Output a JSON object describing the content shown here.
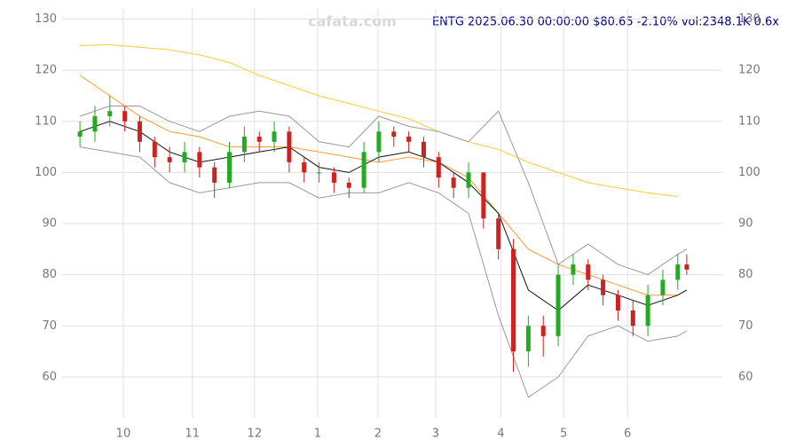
{
  "chart_data": {
    "type": "candlestick",
    "title": "ENTG 2025.06.30 00:00:00 $80.65 -2.10% vol:2348.1K 0.6x",
    "watermark": "cafata.com",
    "xlim": [
      -3,
      206
    ],
    "xticks": [
      {
        "value": 14.5,
        "label": "10"
      },
      {
        "value": 37.6,
        "label": "11"
      },
      {
        "value": 58.4,
        "label": "12"
      },
      {
        "value": 79.5,
        "label": "1"
      },
      {
        "value": 99.7,
        "label": "2"
      },
      {
        "value": 119,
        "label": "3"
      },
      {
        "value": 140.8,
        "label": "4"
      },
      {
        "value": 161.8,
        "label": "5"
      },
      {
        "value": 183.2,
        "label": "6"
      }
    ],
    "ylim": [
      52,
      132
    ],
    "yticks": [
      60,
      70,
      80,
      90,
      100,
      110,
      120,
      130
    ],
    "grid": true,
    "up_color": "#22aa22",
    "down_color": "#cc2222",
    "candles": {
      "x": [
        0,
        5,
        10,
        15,
        20,
        25,
        30,
        35,
        40,
        45,
        50,
        55,
        60,
        65,
        70,
        75,
        80,
        85,
        90,
        95,
        100,
        105,
        110,
        115,
        120,
        125,
        130,
        135,
        140,
        145,
        150,
        155,
        160,
        165,
        170,
        175,
        180,
        185,
        190,
        195,
        200,
        203
      ],
      "open": [
        107,
        108,
        111,
        112,
        110,
        106,
        103,
        102,
        104,
        101,
        98,
        104,
        107,
        106,
        108,
        102,
        100,
        100,
        98,
        97,
        104,
        108,
        107,
        106,
        103,
        99,
        97,
        100,
        91,
        85,
        65,
        70,
        68,
        80,
        82,
        79,
        76,
        73,
        70,
        76,
        79,
        82
      ],
      "close": [
        108,
        111,
        112,
        110,
        106,
        103,
        102,
        104,
        101,
        98,
        104,
        107,
        106,
        108,
        102,
        100,
        100,
        98,
        97,
        104,
        108,
        107,
        106,
        103,
        99,
        97,
        100,
        91,
        85,
        65,
        70,
        68,
        80,
        82,
        79,
        76,
        73,
        70,
        76,
        79,
        82,
        81
      ],
      "high": [
        110,
        113,
        115,
        113,
        111,
        107,
        105,
        106,
        105,
        102,
        106,
        109,
        108,
        110,
        109,
        103,
        102,
        101,
        99,
        106,
        110,
        109,
        108,
        107,
        104,
        100,
        102,
        100,
        92,
        87,
        72,
        72,
        82,
        84,
        83,
        80,
        77,
        75,
        78,
        81,
        84,
        84
      ],
      "low": [
        105,
        106,
        109,
        108,
        104,
        101,
        100,
        100,
        99,
        95,
        97,
        102,
        104,
        104,
        100,
        98,
        98,
        96,
        95,
        96,
        102,
        105,
        104,
        101,
        97,
        95,
        95,
        89,
        83,
        61,
        62,
        64,
        66,
        78,
        77,
        74,
        71,
        68,
        68,
        74,
        77,
        80
      ]
    },
    "series": [
      {
        "color": "#ffcc33",
        "x": [
          0,
          10,
          20,
          30,
          40,
          50,
          60,
          70,
          80,
          90,
          100,
          110,
          120,
          130,
          140,
          150,
          160,
          170,
          180,
          190,
          200
        ],
        "values": [
          124.8,
          125,
          124.5,
          124,
          123,
          121.5,
          119,
          117,
          115,
          113.5,
          112,
          110.5,
          108,
          106,
          104.5,
          102,
          100,
          98,
          97,
          96,
          95.3
        ]
      },
      {
        "color": "#ff9933",
        "x": [
          0,
          10,
          20,
          30,
          40,
          50,
          60,
          70,
          80,
          90,
          100,
          110,
          120,
          130,
          140,
          150,
          160,
          170,
          180,
          190,
          200
        ],
        "values": [
          119,
          115,
          111,
          108,
          107,
          105,
          105,
          105,
          104,
          103,
          102,
          103,
          102,
          99,
          92,
          85,
          82,
          80,
          78,
          76,
          76
        ]
      },
      {
        "color": "#111111",
        "x": [
          0,
          10,
          20,
          30,
          40,
          50,
          60,
          70,
          80,
          90,
          100,
          110,
          120,
          130,
          140,
          150,
          160,
          170,
          180,
          190,
          200,
          203
        ],
        "values": [
          108,
          110,
          108,
          104,
          102,
          103,
          104,
          105,
          101,
          100,
          103,
          104,
          102,
          98,
          92,
          77,
          73,
          78,
          76,
          74,
          76,
          77
        ]
      },
      {
        "color": "#999999",
        "x": [
          0,
          10,
          20,
          30,
          40,
          50,
          60,
          70,
          80,
          90,
          100,
          110,
          120,
          130,
          140,
          150,
          160,
          170,
          180,
          190,
          200,
          203
        ],
        "values": [
          111,
          113,
          113,
          110,
          108,
          111,
          112,
          111,
          106,
          105,
          111,
          109,
          108,
          106,
          112,
          98,
          82,
          86,
          82,
          80,
          84,
          85
        ]
      },
      {
        "color": "#999999",
        "x": [
          0,
          10,
          20,
          30,
          40,
          50,
          60,
          70,
          80,
          90,
          100,
          110,
          120,
          130,
          140,
          150,
          160,
          170,
          180,
          190,
          200,
          203
        ],
        "values": [
          105,
          104,
          103,
          98,
          96,
          97,
          98,
          98,
          95,
          96,
          96,
          98,
          96,
          92,
          72,
          56,
          60,
          68,
          70,
          67,
          68,
          69
        ]
      }
    ]
  }
}
